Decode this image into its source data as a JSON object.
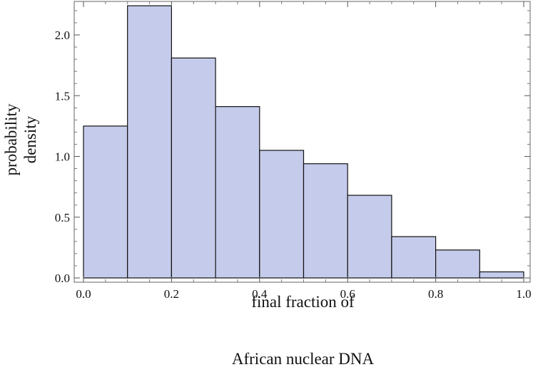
{
  "chart_data": {
    "type": "bar",
    "bin_edges": [
      0.0,
      0.1,
      0.2,
      0.3,
      0.4,
      0.5,
      0.6,
      0.7,
      0.8,
      0.9,
      1.0
    ],
    "values": [
      1.25,
      2.24,
      1.81,
      1.41,
      1.05,
      0.94,
      0.68,
      0.34,
      0.23,
      0.05
    ],
    "xlabel": [
      "final fraction of",
      "African nuclear DNA"
    ],
    "ylabel": [
      "probability",
      "density"
    ],
    "xlim": [
      -0.02,
      1.02
    ],
    "ylim": [
      -0.03,
      2.3
    ],
    "xticks": [
      0.0,
      0.2,
      0.4,
      0.6,
      0.8,
      1.0
    ],
    "xtick_labels": [
      "0.0",
      "0.2",
      "0.4",
      "0.6",
      "0.8",
      "1.0"
    ],
    "yticks": [
      0.0,
      0.5,
      1.0,
      1.5,
      2.0
    ],
    "ytick_labels": [
      "0.0",
      "0.5",
      "1.0",
      "1.5",
      "2.0"
    ],
    "grid": false,
    "bar_color": "#c5cbeb",
    "edge_color": "#111111"
  }
}
